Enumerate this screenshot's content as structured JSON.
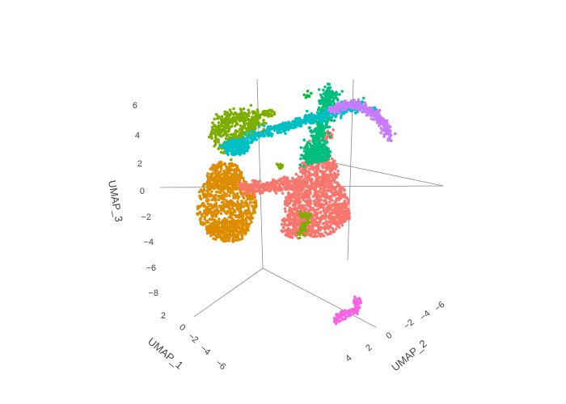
{
  "chart_data": {
    "type": "scatter",
    "dimensions": 3,
    "xlabel": "UMAP_1",
    "ylabel": "UMAP_2",
    "zlabel": "UMAP_3",
    "x_ticks": [
      "2",
      "0",
      "−2",
      "−4",
      "−6"
    ],
    "y_ticks": [
      "4",
      "2",
      "0",
      "−2",
      "−4",
      "−6"
    ],
    "z_ticks": [
      "6",
      "4",
      "2",
      "0",
      "−2",
      "−4",
      "−6",
      "−8"
    ],
    "legend": "none",
    "clusters": [
      {
        "color": "#F8766D"
      },
      {
        "color": "#DE8C00"
      },
      {
        "color": "#7CAE00"
      },
      {
        "color": "#00BA38"
      },
      {
        "color": "#00BF7D"
      },
      {
        "color": "#00BFC4"
      },
      {
        "color": "#C77CFF"
      },
      {
        "color": "#F564E3"
      }
    ]
  }
}
